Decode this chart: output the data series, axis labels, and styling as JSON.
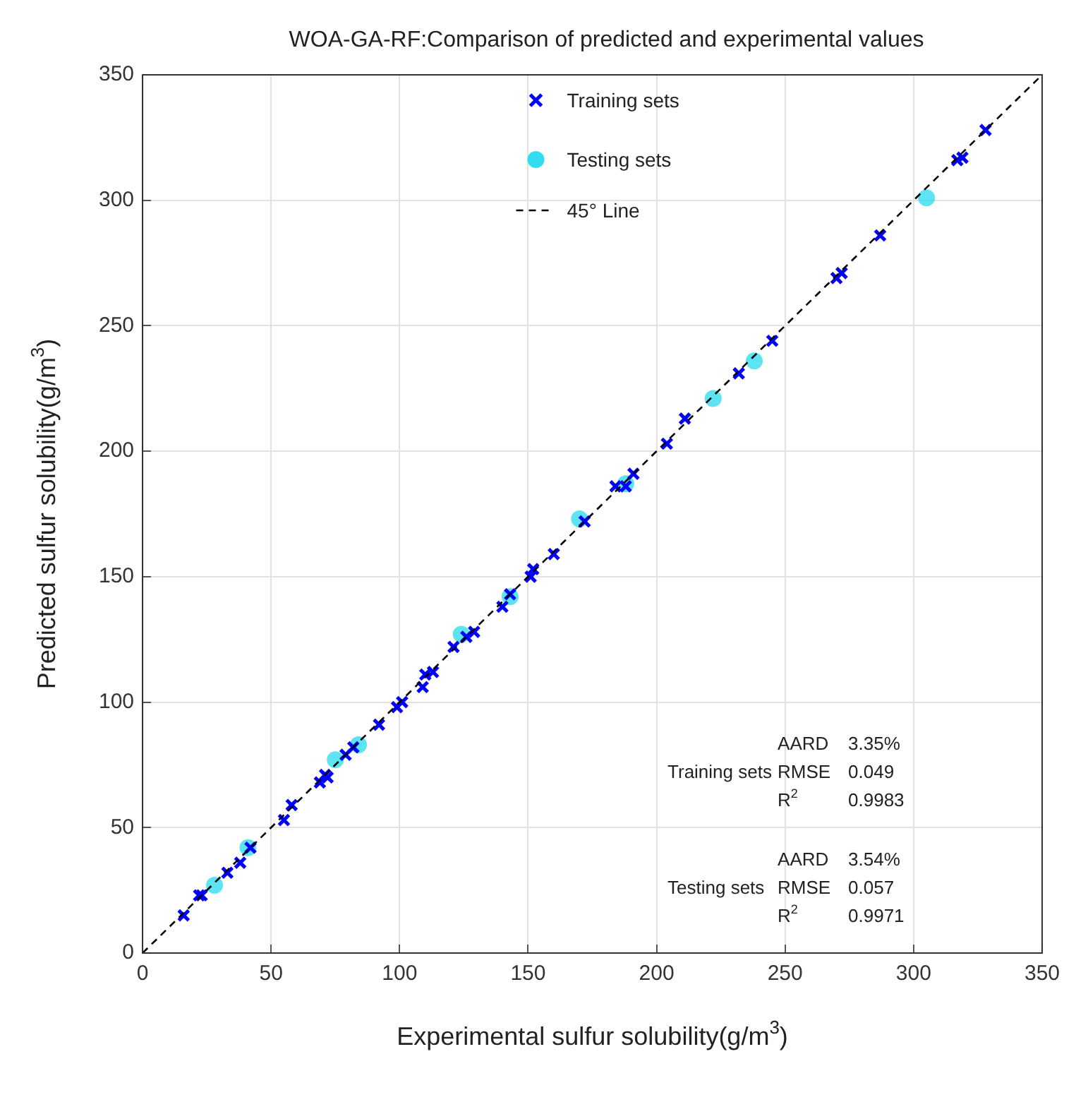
{
  "chart_data": {
    "type": "scatter",
    "title": "WOA-GA-RF:Comparison of predicted and experimental values",
    "xlabel": "Experimental sulfur solubility(g/m$^{3}$)",
    "ylabel": "Predicted sulfur solubility(g/m$^{3}$)",
    "xlim": [
      0,
      350
    ],
    "ylim": [
      0,
      350
    ],
    "xticks": [
      0,
      50,
      100,
      150,
      200,
      250,
      300,
      350
    ],
    "yticks": [
      0,
      50,
      100,
      150,
      200,
      250,
      300,
      350
    ],
    "grid": true,
    "legend": "top",
    "series": [
      {
        "name": "Training sets",
        "type": "scatter",
        "marker": "cross",
        "color": "#0000ff",
        "x": [
          16,
          22,
          23,
          33,
          38,
          42,
          55,
          58,
          69,
          71,
          72,
          79,
          82,
          92,
          99,
          101,
          109,
          110,
          113,
          121,
          126,
          129,
          140,
          143,
          151,
          152,
          160,
          172,
          184,
          188,
          191,
          204,
          211,
          232,
          245,
          270,
          272,
          287,
          317,
          319,
          328
        ],
        "values": [
          15,
          23,
          23,
          32,
          36,
          42,
          53,
          59,
          68,
          71,
          70,
          79,
          82,
          91,
          98,
          100,
          106,
          111,
          112,
          122,
          126,
          128,
          138,
          143,
          150,
          153,
          159,
          172,
          186,
          186,
          191,
          203,
          213,
          231,
          244,
          269,
          271,
          286,
          316,
          317,
          328
        ]
      },
      {
        "name": "Testing sets",
        "type": "scatter",
        "marker": "circle",
        "color": "#33ddf0",
        "x": [
          28,
          41,
          75,
          84,
          124,
          143,
          170,
          188,
          222,
          238,
          305
        ],
        "values": [
          27,
          42,
          77,
          83,
          127,
          142,
          173,
          187,
          221,
          236,
          301
        ]
      },
      {
        "name": "45° Line",
        "type": "line",
        "marker": "none",
        "line_style": "dashed",
        "color": "#000000",
        "x": [
          0,
          350
        ],
        "values": [
          0,
          350
        ]
      }
    ],
    "annotations": [
      "Training sets",
      "AARD 3.35%",
      "RMSE 0.049",
      "R$^{2}$ 0.9983",
      "Testing sets",
      "AARD 3.54%",
      "RMSE 0.057",
      "R$^{2}$ 0.9971"
    ]
  }
}
